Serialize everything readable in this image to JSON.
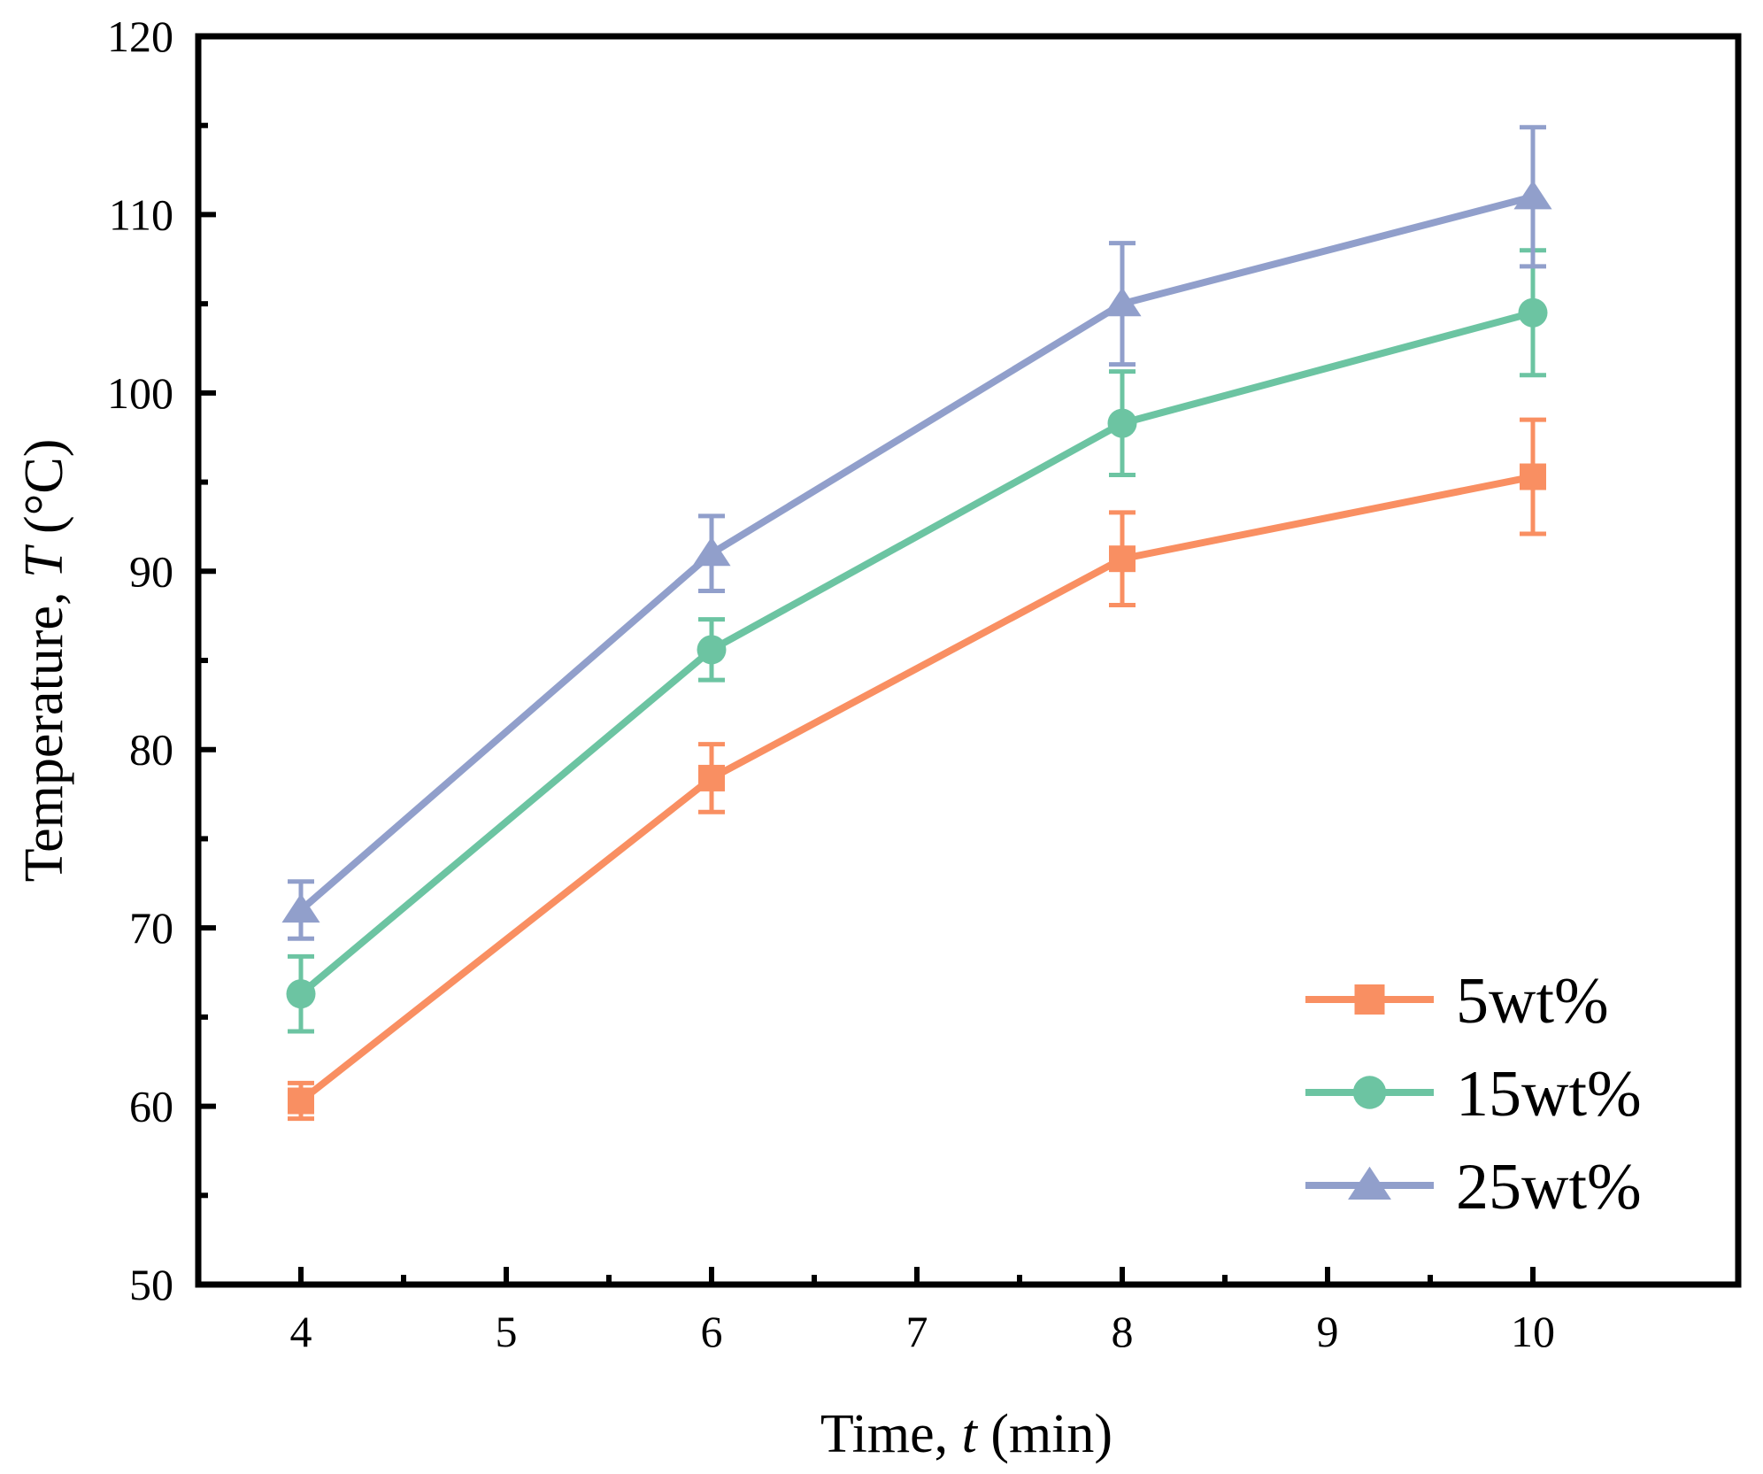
{
  "chart_data": {
    "type": "line",
    "title": "",
    "xlabel": {
      "prefix": "Time, ",
      "symbol": "t",
      "suffix": " (min)"
    },
    "ylabel": {
      "prefix": "Temperature, ",
      "symbol": "T",
      "suffix": " (°C)"
    },
    "xlim": [
      3.5,
      11
    ],
    "ylim": [
      50,
      120
    ],
    "x_ticks": [
      4,
      5,
      6,
      7,
      8,
      9,
      10
    ],
    "y_ticks": [
      50,
      60,
      70,
      80,
      90,
      100,
      110,
      120
    ],
    "grid": false,
    "legend_position": "bottom-right",
    "x": [
      4,
      6,
      8,
      10
    ],
    "series": [
      {
        "name": "5wt%",
        "marker": "square",
        "color": "#F98F62",
        "values": [
          60.3,
          78.4,
          90.7,
          95.3
        ],
        "errors": [
          1.0,
          1.9,
          2.6,
          3.2
        ]
      },
      {
        "name": "15wt%",
        "marker": "circle",
        "color": "#6CC4A2",
        "values": [
          66.3,
          85.6,
          98.3,
          104.5
        ],
        "errors": [
          2.1,
          1.7,
          2.9,
          3.5
        ]
      },
      {
        "name": "25wt%",
        "marker": "triangle",
        "color": "#919FCB",
        "values": [
          71.0,
          91.0,
          105.0,
          111.0
        ],
        "errors": [
          1.6,
          2.1,
          3.4,
          3.9
        ]
      }
    ]
  }
}
